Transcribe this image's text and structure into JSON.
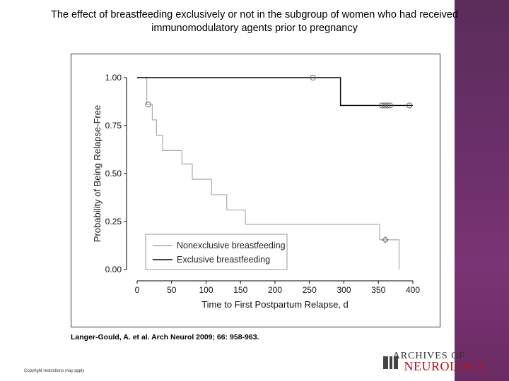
{
  "slide": {
    "title_line1": "The effect of breastfeeding exclusively or not in the subgroup of women who had received",
    "title_line2": "immunomodulatory agents prior to pregnancy",
    "citation": "Langer-Gould, A. et al. Arch Neurol 2009; 66: 958-963.",
    "copyright": "Copyright restrictions may apply",
    "logo_line1": "ARCHIVES OF",
    "logo_line2": "NEUROLOGY",
    "accent_color": "#6b2f6a",
    "logo_color": "#b5121b"
  },
  "chart_data": {
    "type": "line",
    "subtype": "kaplan-meier",
    "xlabel": "Time to First Postpartum Relapse, d",
    "ylabel": "Probability of Being Relapse-Free",
    "xlim": [
      0,
      400
    ],
    "ylim": [
      0,
      1
    ],
    "x_ticks": [
      0,
      50,
      100,
      150,
      200,
      250,
      300,
      350,
      400
    ],
    "y_ticks": [
      0,
      0.25,
      0.5,
      0.75,
      1.0
    ],
    "y_tick_labels": [
      "0.00",
      "0.25",
      "0.50",
      "0.75",
      "1.00"
    ],
    "legend_position": "bottom-left",
    "series": [
      {
        "name": "Nonexclusive breastfeeding",
        "color": "#aaaaaa",
        "steps": [
          [
            0,
            1.0
          ],
          [
            14,
            0.86
          ],
          [
            22,
            0.78
          ],
          [
            28,
            0.7
          ],
          [
            37,
            0.62
          ],
          [
            65,
            0.55
          ],
          [
            80,
            0.47
          ],
          [
            108,
            0.39
          ],
          [
            130,
            0.31
          ],
          [
            157,
            0.235
          ],
          [
            352,
            0.155
          ],
          [
            380,
            0.0
          ]
        ],
        "censored": [
          [
            360,
            0.155
          ]
        ]
      },
      {
        "name": "Exclusive breastfeeding",
        "color": "#000000",
        "steps": [
          [
            0,
            1.0
          ],
          [
            295,
            0.855
          ],
          [
            400,
            0.855
          ]
        ],
        "censored": [
          [
            255,
            1.0
          ],
          [
            355,
            0.855
          ],
          [
            359,
            0.855
          ],
          [
            363,
            0.855
          ],
          [
            367,
            0.855
          ],
          [
            395,
            0.855
          ]
        ]
      }
    ]
  }
}
